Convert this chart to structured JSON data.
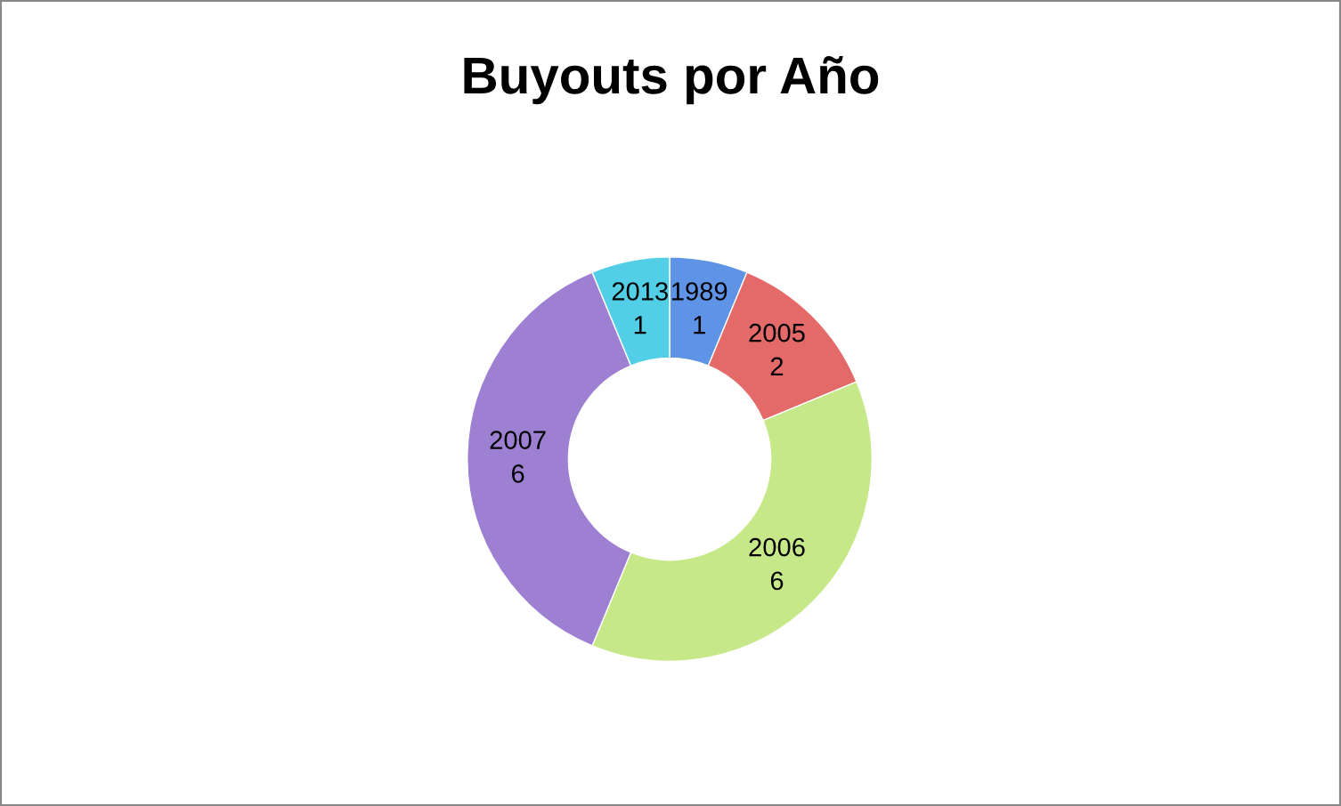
{
  "chart_data": {
    "type": "donut",
    "title": "Buyouts por Año",
    "categories": [
      "1989",
      "2005",
      "2006",
      "2007",
      "2013"
    ],
    "values": [
      1,
      2,
      6,
      6,
      1
    ],
    "colors": [
      "#5f93e6",
      "#e46a6a",
      "#c6e888",
      "#9d80d2",
      "#52cfe6"
    ],
    "data_labels": true,
    "legend": false
  }
}
